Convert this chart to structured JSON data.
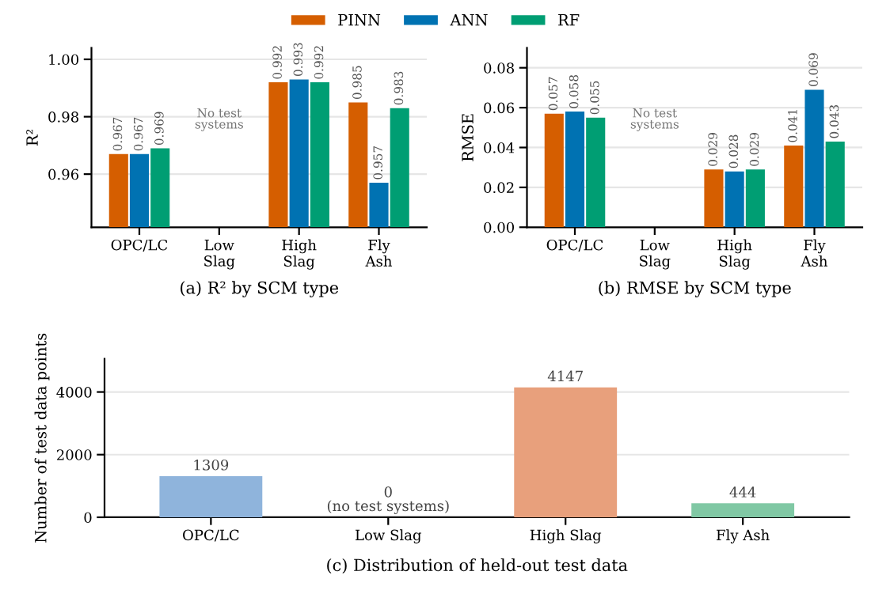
{
  "chart_data": [
    {
      "type": "bar",
      "title": "(a) R² by SCM type",
      "ylabel": "R²",
      "categories": [
        "OPC/LC",
        "Low\nSlag",
        "High\nSlag",
        "Fly\nAsh"
      ],
      "series": [
        {
          "name": "PINN",
          "color": "#d55e00",
          "values": [
            0.967,
            null,
            0.992,
            0.985
          ]
        },
        {
          "name": "ANN",
          "color": "#0072b2",
          "values": [
            0.967,
            null,
            0.993,
            0.957
          ]
        },
        {
          "name": "RF",
          "color": "#009e73",
          "values": [
            0.969,
            null,
            0.992,
            0.983
          ]
        }
      ],
      "ylim": [
        0.9415,
        1.004
      ],
      "yticks": [
        {
          "value": 0.96,
          "label": "0.96"
        },
        {
          "value": 0.98,
          "label": "0.98"
        },
        {
          "value": 1.0,
          "label": "1.00"
        }
      ],
      "data_labels": true,
      "grid": "y",
      "legend": "top",
      "annotations": [
        "No test\nsystems"
      ]
    },
    {
      "type": "bar",
      "title": "(b) RMSE by SCM type",
      "ylabel": "RMSE",
      "categories": [
        "OPC/LC",
        "Low\nSlag",
        "High\nSlag",
        "Fly\nAsh"
      ],
      "series": [
        {
          "color": "#d55e00",
          "values": [
            0.057,
            null,
            0.029,
            0.041
          ]
        },
        {
          "color": "#0072b2",
          "values": [
            0.058,
            null,
            0.028,
            0.069
          ]
        },
        {
          "color": "#009e73",
          "values": [
            0.055,
            null,
            0.029,
            0.043
          ]
        }
      ],
      "ylim": [
        0,
        0.09
      ],
      "yticks": [
        {
          "value": 0,
          "label": "0.00"
        },
        {
          "value": 0.02,
          "label": "0.02"
        },
        {
          "value": 0.04,
          "label": "0.04"
        },
        {
          "value": 0.06,
          "label": "0.06"
        },
        {
          "value": 0.08,
          "label": "0.08"
        }
      ],
      "data_labels": true,
      "grid": "y",
      "annotations": [
        "No test\nsystems"
      ]
    },
    {
      "type": "bar",
      "title": "(c) Distribution of held-out test data",
      "ylabel": "Number of test data points",
      "categories": [
        "OPC/LC",
        "Low Slag",
        "High Slag",
        "Fly Ash"
      ],
      "values": [
        1309,
        0,
        4147,
        444
      ],
      "colors": [
        "#8fb4dc",
        "#bbbbbb",
        "#e8a07c",
        "#80c8a4"
      ],
      "value_labels": [
        "1309",
        "0\n(no test systems)",
        "4147",
        "444"
      ],
      "ylim": [
        0,
        5060
      ],
      "yticks": [
        0,
        2000,
        4000
      ],
      "grid": "y"
    }
  ]
}
